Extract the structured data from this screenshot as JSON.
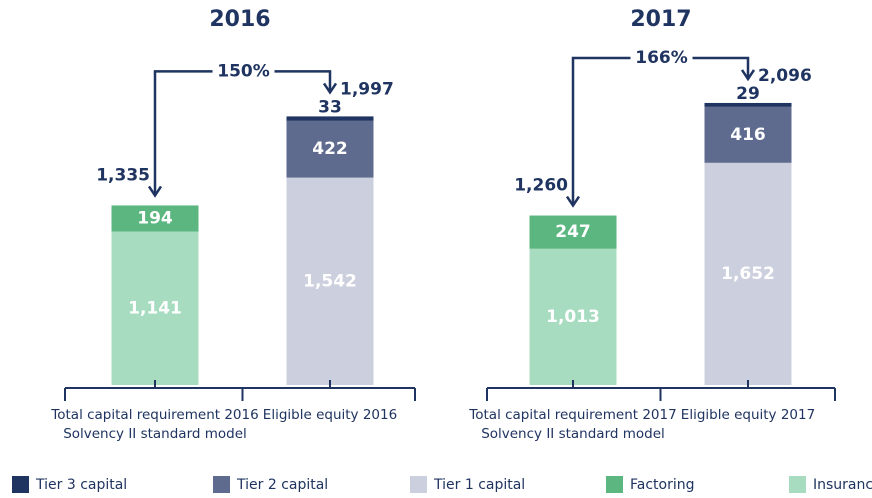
{
  "legend": [
    {
      "name": "Tier 3 capital",
      "color": "#1f3460"
    },
    {
      "name": "Tier 2 capital",
      "color": "#5f6a8f"
    },
    {
      "name": "Tier 1 capital",
      "color": "#cccfdd"
    },
    {
      "name": "Factoring",
      "color": "#5bb67f"
    },
    {
      "name": "Insurance",
      "color": "#a8dcc1"
    }
  ],
  "chart_data": [
    {
      "type": "bar",
      "stacked": true,
      "title": "2016",
      "categories": [
        [
          "Total capital requirement 2016",
          "Solvency II standard model"
        ],
        [
          "Eligible equity 2016"
        ]
      ],
      "series": [
        {
          "values": [
            null,
            33
          ],
          "value_labels": [
            null,
            "33"
          ]
        },
        {
          "values": [
            null,
            422
          ],
          "value_labels": [
            null,
            "422"
          ]
        },
        {
          "values": [
            null,
            1542
          ],
          "value_labels": [
            null,
            "1,542"
          ]
        },
        {
          "values": [
            194,
            null
          ],
          "value_labels": [
            "194",
            null
          ]
        },
        {
          "values": [
            1141,
            null
          ],
          "value_labels": [
            "1,141",
            null
          ]
        }
      ],
      "totals": [
        1335,
        1997
      ],
      "total_labels": [
        "1,335",
        "1,997"
      ],
      "ratio_label": "150%"
    },
    {
      "type": "bar",
      "stacked": true,
      "title": "2017",
      "categories": [
        [
          "Total capital requirement 2017",
          "Solvency II standard model"
        ],
        [
          "Eligible equity 2017"
        ]
      ],
      "series": [
        {
          "values": [
            null,
            29
          ],
          "value_labels": [
            null,
            "29"
          ]
        },
        {
          "values": [
            null,
            416
          ],
          "value_labels": [
            null,
            "416"
          ]
        },
        {
          "values": [
            null,
            1652
          ],
          "value_labels": [
            null,
            "1,652"
          ]
        },
        {
          "values": [
            247,
            null
          ],
          "value_labels": [
            "247",
            null
          ]
        },
        {
          "values": [
            1013,
            null
          ],
          "value_labels": [
            "1,013",
            null
          ]
        }
      ],
      "totals": [
        1260,
        2096
      ],
      "total_labels": [
        "1,260",
        "2,096"
      ],
      "ratio_label": "166%"
    }
  ]
}
